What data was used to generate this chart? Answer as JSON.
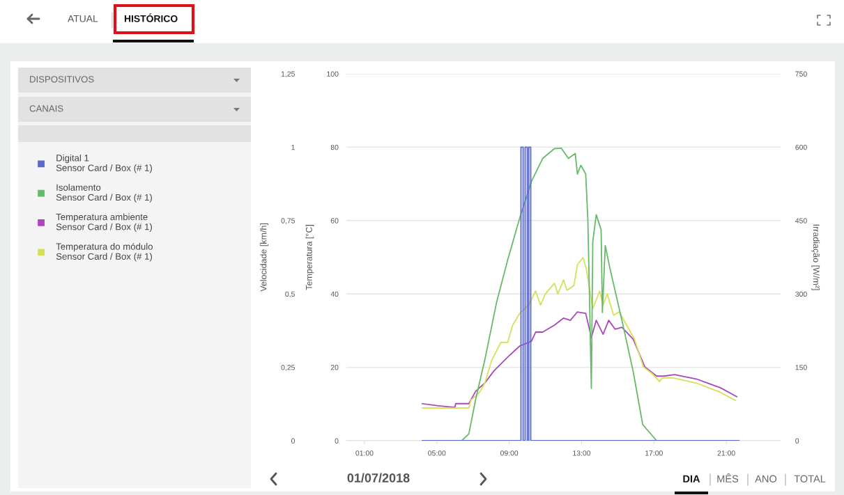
{
  "chart_data": {
    "type": "line",
    "xlim": [
      0,
      24
    ],
    "xticks": [
      {
        "value": 1,
        "label": "01:00"
      },
      {
        "value": 5,
        "label": "05:00"
      },
      {
        "value": 9,
        "label": "09:00"
      },
      {
        "value": 13,
        "label": "13:00"
      },
      {
        "value": 17,
        "label": "17:00"
      },
      {
        "value": 21,
        "label": "21:00"
      }
    ],
    "ylabel": "Temperatura [°C]",
    "ylim": [
      0,
      100
    ],
    "yticks": [
      0,
      20,
      40,
      60,
      80,
      100
    ],
    "y2label": "Irradiação [W/m²]",
    "y2lim": [
      0,
      750
    ],
    "y2ticks": [
      0,
      150,
      300,
      450,
      600,
      750
    ],
    "y3label": "Velocidade [km/h]",
    "y3lim": [
      0,
      1.25
    ],
    "y3ticks": [
      {
        "value": 0,
        "label": "0"
      },
      {
        "value": 0.25,
        "label": "0,25"
      },
      {
        "value": 0.5,
        "label": "0,5"
      },
      {
        "value": 0.75,
        "label": "0,75"
      },
      {
        "value": 1,
        "label": "1"
      },
      {
        "value": 1.25,
        "label": "1,25"
      }
    ],
    "grid": "y",
    "legend": "left",
    "series": [
      {
        "name": "Digital 1\nSensor Card / Box (# 1)",
        "type": "step",
        "axis": "y3",
        "color": "#5b6ac8",
        "x": [
          4.2,
          9.65,
          9.77,
          9.88,
          10.0,
          10.08,
          10.19,
          21.7
        ],
        "values": [
          0,
          1,
          0,
          1,
          0,
          1,
          0,
          0
        ]
      },
      {
        "name": "Isolamento\nSensor Card / Box (# 1)",
        "axis": "y2",
        "color": "#66bb6a",
        "x": [
          4.2,
          6.38,
          6.77,
          7.15,
          7.65,
          8.31,
          8.92,
          9.58,
          10.23,
          10.85,
          11.5,
          11.88,
          12.27,
          12.65,
          12.77,
          12.96,
          13.23,
          13.35,
          13.54,
          13.62,
          13.81,
          14.08,
          14.15,
          14.31,
          14.58,
          15.23,
          15.85,
          16.38,
          17.15,
          21.7
        ],
        "values": [
          0,
          0,
          14,
          85,
          165,
          284,
          370,
          455,
          530,
          577,
          597,
          598,
          577,
          587,
          545,
          563,
          545,
          450,
          107,
          407,
          462,
          431,
          262,
          399,
          350,
          246,
          142,
          33,
          0,
          0
        ]
      },
      {
        "name": "Temperatura ambiente\nSensor Card / Box (# 1)",
        "axis": "y",
        "color": "#ab47bc",
        "x": [
          4.2,
          5.08,
          6.0,
          6.04,
          6.77,
          7.15,
          7.65,
          8.15,
          8.92,
          9.58,
          10.23,
          10.46,
          10.85,
          11.5,
          12.0,
          12.38,
          12.77,
          13.23,
          13.54,
          13.81,
          14.19,
          14.5,
          14.85,
          15.23,
          15.85,
          16.5,
          17.15,
          17.54,
          18.15,
          19.42,
          20.69,
          21.58
        ],
        "values": [
          10.1,
          9.5,
          9.1,
          10.1,
          10.1,
          13.5,
          15.7,
          19,
          22.8,
          25.8,
          27.1,
          29.6,
          29.6,
          31.5,
          33.4,
          32.8,
          35.1,
          34.7,
          28.1,
          32.8,
          29,
          32.8,
          30.4,
          30.9,
          27.7,
          20.1,
          17.6,
          17.6,
          18,
          16.7,
          14.4,
          12
        ]
      },
      {
        "name": "Temperatura do módulo\nSensor Card / Box (# 1)",
        "axis": "y",
        "color": "#d4e157",
        "x": [
          4.2,
          6.77,
          6.88,
          7.38,
          7.65,
          8.04,
          8.54,
          8.92,
          9.19,
          9.58,
          10.08,
          10.46,
          10.73,
          11.0,
          11.5,
          11.69,
          12.0,
          12.19,
          12.58,
          12.77,
          13.08,
          13.27,
          13.62,
          14.0,
          14.19,
          14.42,
          14.77,
          15.08,
          15.92,
          16.42,
          16.92,
          17.31,
          17.46,
          18.08,
          19.35,
          20.62,
          21.5
        ],
        "values": [
          8.9,
          8.9,
          11,
          13.3,
          15.7,
          22,
          26.8,
          26.8,
          31.5,
          34.7,
          37,
          40.8,
          37,
          40,
          42.9,
          40,
          43.8,
          41,
          42.3,
          48,
          49.9,
          46.7,
          36,
          40.8,
          37,
          40,
          34.2,
          35.1,
          27.7,
          20.1,
          18.2,
          16.1,
          17.1,
          17.1,
          15.7,
          13.3,
          11
        ]
      }
    ],
    "annotations": [
      "ATUAL",
      "HISTÓRICO",
      "DISPOSITIVOS",
      "CANAIS",
      "01/07/2018",
      "DIA",
      "MÊS",
      "ANO",
      "TOTAL"
    ]
  }
}
